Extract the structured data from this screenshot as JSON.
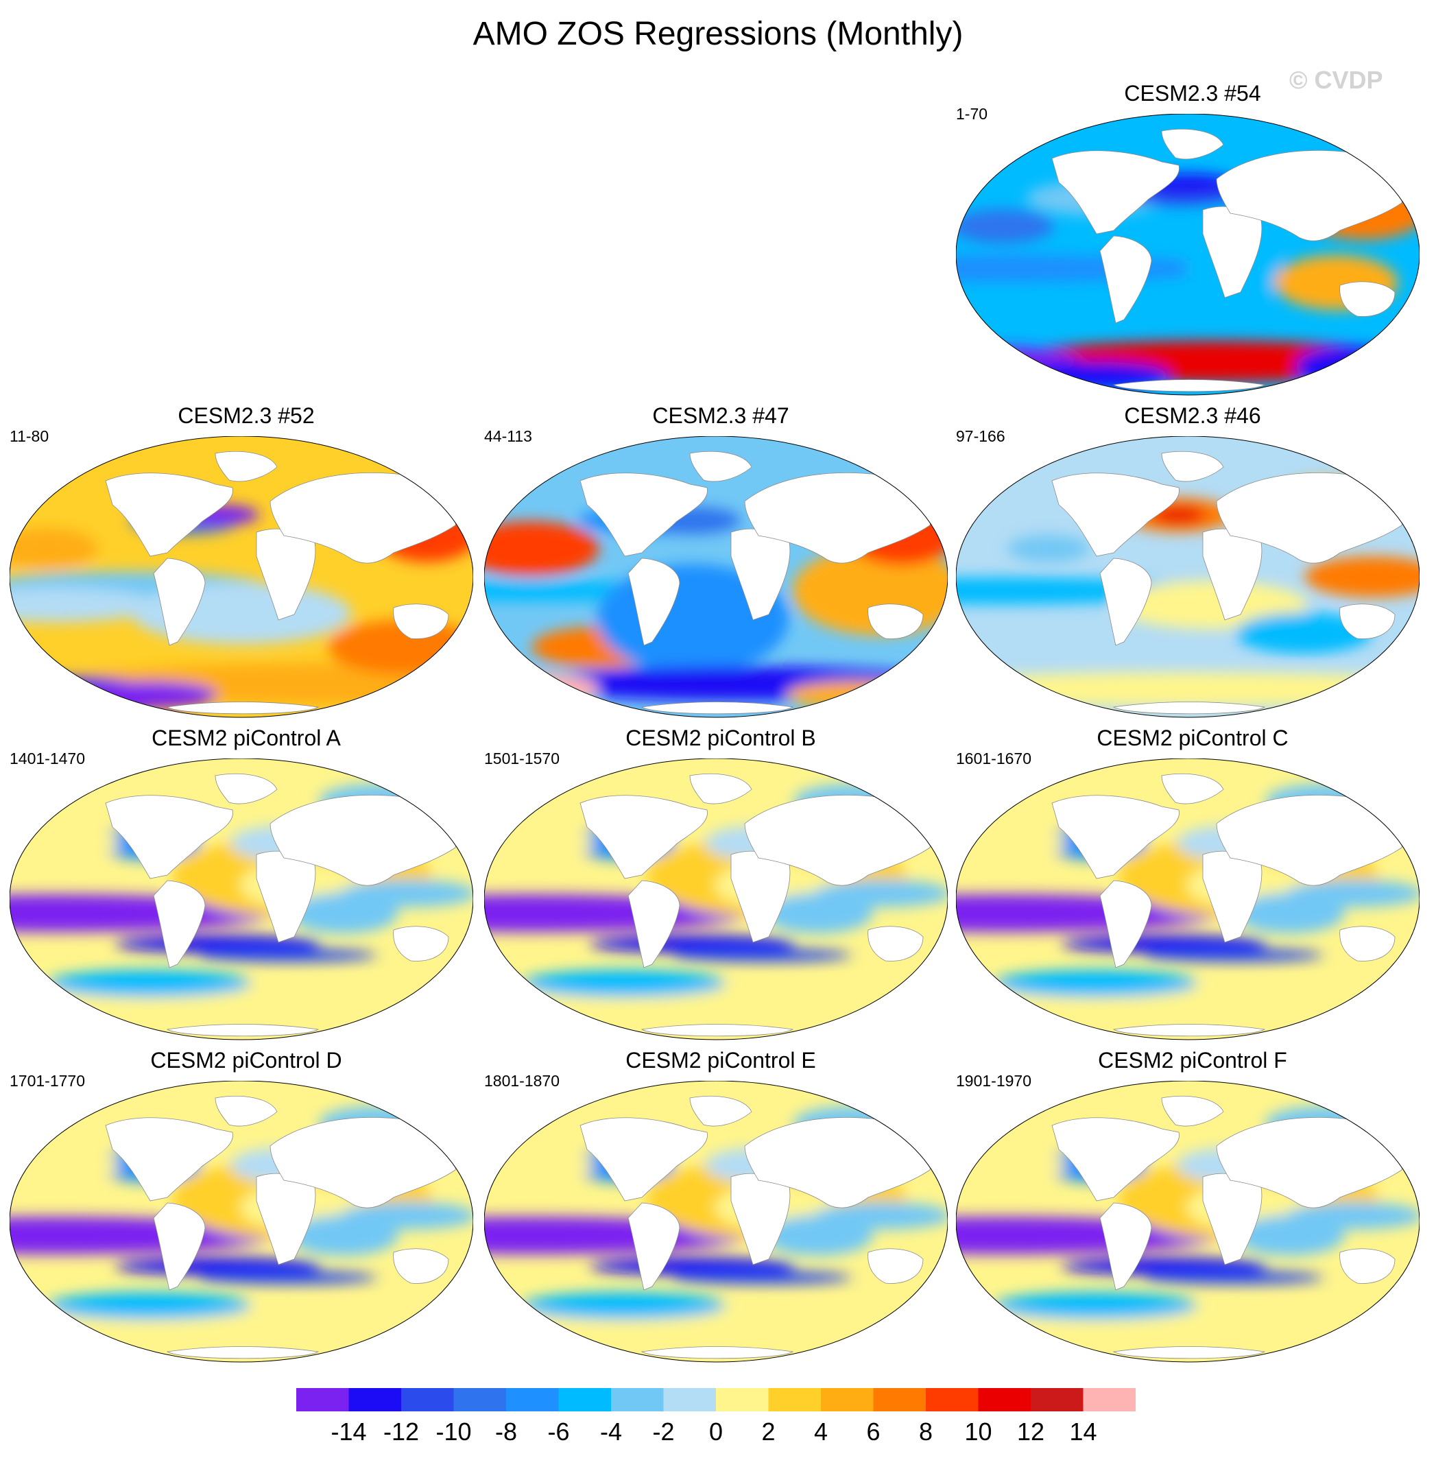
{
  "chart_data": {
    "type": "heatmap",
    "title": "AMO ZOS Regressions (Monthly)",
    "watermark": "© CVDP",
    "panels": [
      {
        "title": "CESM2.3 #54",
        "years": "1-70",
        "pattern": "cesm54"
      },
      {
        "title": "CESM2.3 #52",
        "years": "11-80",
        "pattern": "cesm52"
      },
      {
        "title": "CESM2.3 #47",
        "years": "44-113",
        "pattern": "cesm47"
      },
      {
        "title": "CESM2.3 #46",
        "years": "97-166",
        "pattern": "cesm46"
      },
      {
        "title": "CESM2 piControl A",
        "years": "1401-1470",
        "pattern": "pi"
      },
      {
        "title": "CESM2 piControl B",
        "years": "1501-1570",
        "pattern": "pi"
      },
      {
        "title": "CESM2 piControl C",
        "years": "1601-1670",
        "pattern": "pi"
      },
      {
        "title": "CESM2 piControl D",
        "years": "1701-1770",
        "pattern": "pi"
      },
      {
        "title": "CESM2 piControl E",
        "years": "1801-1870",
        "pattern": "pi"
      },
      {
        "title": "CESM2 piControl F",
        "years": "1901-1970",
        "pattern": "pi"
      }
    ],
    "colorbar": {
      "levels": [
        -14,
        -12,
        -10,
        -8,
        -6,
        -4,
        -2,
        0,
        2,
        4,
        6,
        8,
        10,
        12,
        14
      ],
      "tick_labels": [
        "-14",
        "-12",
        "-10",
        "-8",
        "-6",
        "-4",
        "-2",
        "0",
        "2",
        "4",
        "6",
        "8",
        "10",
        "12",
        "14"
      ],
      "colors": [
        "#7b22f0",
        "#1c0cf5",
        "#2b4bec",
        "#2f74ee",
        "#1e90ff",
        "#00bbff",
        "#72c8f5",
        "#b3dcf5",
        "#fff58c",
        "#ffd02a",
        "#ffad12",
        "#ff7a00",
        "#ff3c00",
        "#ea0000",
        "#cc1a1a",
        "#ffb4b4"
      ]
    }
  }
}
